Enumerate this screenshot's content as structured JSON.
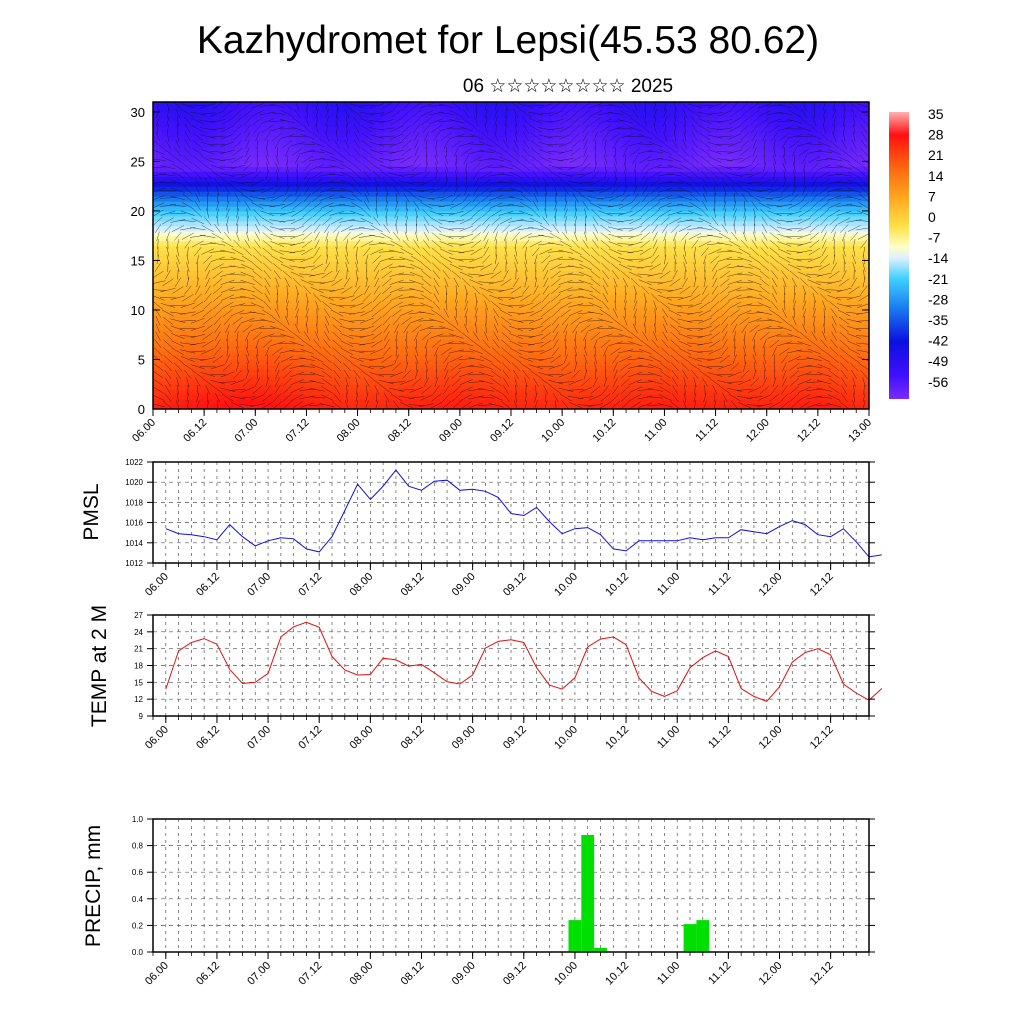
{
  "title": "Kazhydromet for Lepsi(45.53 80.62)",
  "subtitle": "06 ☆☆☆☆☆☆☆☆ 2025",
  "time_ticks": [
    "06.00",
    "06.12",
    "07.00",
    "07.12",
    "08.00",
    "08.12",
    "09.00",
    "09.12",
    "10.00",
    "10.12",
    "11.00",
    "11.12",
    "12.00",
    "12.12",
    "13.00"
  ],
  "colors": {
    "pmsl_line": "#1010e0",
    "temp_line": "#e01010",
    "precip_bar": "#00e000"
  },
  "chart_data": [
    {
      "type": "heatmap",
      "name": "cross-section",
      "x_start": 0,
      "x_end": 14,
      "ylim": [
        0,
        31
      ],
      "yticks": [
        0,
        5,
        10,
        15,
        20,
        25,
        30
      ],
      "colorbar_labels": [
        "35",
        "28",
        "21",
        "14",
        "7",
        "0",
        "-7",
        "-14",
        "-21",
        "-28",
        "-35",
        "-42",
        "-49",
        "-56"
      ],
      "colorbar_range": [
        -60,
        38
      ],
      "surface_temp_approx": [
        30,
        32,
        33,
        31,
        29,
        30,
        31,
        30,
        29,
        30,
        31,
        30,
        30,
        31,
        29
      ],
      "zero_level_approx": 16.5,
      "cold_core_level": 24.5,
      "overlay": "wind vectors"
    },
    {
      "type": "line",
      "ylabel": "PMSL",
      "ylim": [
        1012,
        1022
      ],
      "yticks": [
        "1012",
        "1014",
        "1016",
        "1018",
        "1020",
        "1022"
      ],
      "x_start": 0.25,
      "x_step": 0.25,
      "values": [
        1015.4,
        1014.9,
        1014.8,
        1014.6,
        1014.3,
        1015.8,
        1014.6,
        1013.7,
        1014.2,
        1014.5,
        1014.4,
        1013.4,
        1013.1,
        1014.6,
        1017.2,
        1019.8,
        1018.3,
        1019.6,
        1021.2,
        1019.6,
        1019.2,
        1020.1,
        1020.2,
        1019.2,
        1019.3,
        1019.1,
        1018.5,
        1016.9,
        1016.7,
        1017.5,
        1016.1,
        1014.9,
        1015.4,
        1015.5,
        1014.8,
        1013.4,
        1013.2,
        1014.2,
        1014.2,
        1014.2,
        1014.2,
        1014.5,
        1014.3,
        1014.5,
        1014.5,
        1015.3,
        1015.1,
        1014.9,
        1015.6,
        1016.2,
        1015.8,
        1014.8,
        1014.6,
        1015.4,
        1014.1,
        1012.6,
        1012.8
      ]
    },
    {
      "type": "line",
      "ylabel": "TEMP at 2 M",
      "ylim": [
        9,
        27
      ],
      "yticks": [
        "9",
        "12",
        "15",
        "18",
        "21",
        "24",
        "27"
      ],
      "x_start": 0.25,
      "x_step": 0.25,
      "values": [
        13.8,
        20.6,
        22.1,
        22.8,
        21.8,
        17.3,
        14.8,
        15.0,
        16.6,
        23.1,
        24.9,
        25.7,
        24.8,
        19.6,
        17.2,
        16.3,
        16.4,
        19.3,
        19.0,
        17.9,
        18.2,
        16.7,
        15.1,
        14.7,
        16.3,
        21.1,
        22.3,
        22.6,
        22.1,
        17.6,
        14.5,
        13.8,
        15.8,
        21.3,
        22.7,
        23.1,
        21.7,
        15.8,
        13.4,
        12.5,
        13.5,
        17.6,
        19.4,
        20.6,
        19.6,
        13.9,
        12.5,
        11.6,
        14.2,
        18.6,
        20.3,
        21.0,
        19.9,
        14.7,
        13.1,
        11.8,
        13.9
      ]
    },
    {
      "type": "bar",
      "ylabel": "PRECIP, mm",
      "ylim": [
        0,
        1.0
      ],
      "yticks": [
        "0.0",
        "0.2",
        "0.4",
        "0.6",
        "0.8",
        "1.0"
      ],
      "bars": [
        {
          "x": 8.25,
          "value": 0.24
        },
        {
          "x": 8.5,
          "value": 0.88
        },
        {
          "x": 8.75,
          "value": 0.03
        },
        {
          "x": 10.5,
          "value": 0.21
        },
        {
          "x": 10.75,
          "value": 0.24
        }
      ]
    }
  ]
}
